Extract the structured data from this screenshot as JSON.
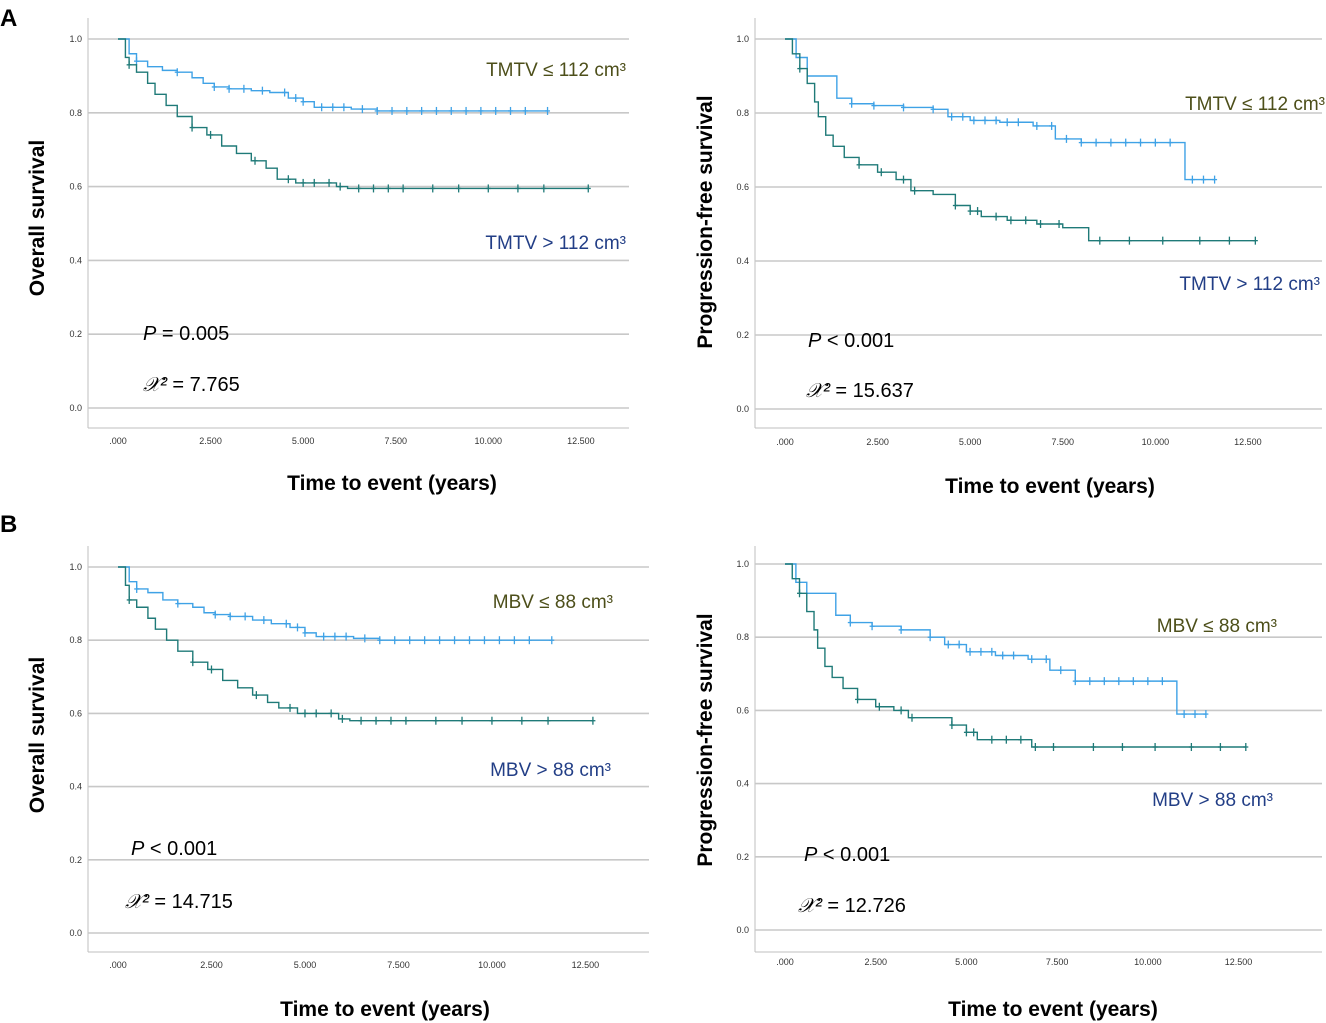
{
  "figure": {
    "panel_labels": [
      "A",
      "B"
    ]
  },
  "colors": {
    "low_group": "#3fa2e6",
    "high_group": "#1f7a78",
    "low_label": "#4d4f1a",
    "high_label": "#223e86",
    "gridline": "#c8c8c8"
  },
  "chart_data": [
    {
      "type": "line",
      "panel": "A",
      "title": "",
      "xlabel": "Time to event (years)",
      "ylabel": "Overall survival",
      "xlim": [
        0,
        13.8
      ],
      "ylim": [
        0,
        1.0
      ],
      "x_ticks": [
        ".000",
        "2.500",
        "5.000",
        "7.500",
        "10.000",
        "12.500"
      ],
      "y_ticks": [
        "0.0",
        "0.2",
        "0.4",
        "0.6",
        "0.8",
        "1.0"
      ],
      "stats": {
        "p_label": "P",
        "p_text": "= 0.005",
        "chi_label": "𝒳²",
        "chi_text": "= 7.765"
      },
      "series": [
        {
          "name": "TMTV ≤ 112 cm³",
          "group": "low",
          "x": [
            0,
            0.3,
            0.5,
            0.8,
            1.2,
            1.6,
            2.0,
            2.3,
            2.6,
            3.0,
            3.6,
            4.1,
            4.6,
            5.0,
            5.3,
            5.8,
            6.3,
            7.0,
            8.0,
            9.0,
            10.0,
            11.0,
            11.6
          ],
          "y": [
            1.0,
            0.96,
            0.94,
            0.925,
            0.915,
            0.91,
            0.895,
            0.88,
            0.87,
            0.865,
            0.86,
            0.855,
            0.84,
            0.83,
            0.815,
            0.815,
            0.81,
            0.805,
            0.805,
            0.805,
            0.805,
            0.805,
            0.805
          ],
          "censor_x": [
            0.5,
            1.6,
            2.6,
            3.0,
            3.4,
            3.9,
            4.5,
            4.8,
            5.0,
            5.5,
            5.8,
            6.1,
            6.6,
            7.0,
            7.4,
            7.8,
            8.2,
            8.6,
            9.0,
            9.4,
            9.8,
            10.2,
            10.6,
            11.0,
            11.6
          ]
        },
        {
          "name": "TMTV > 112 cm³",
          "group": "high",
          "x": [
            0,
            0.2,
            0.3,
            0.5,
            0.8,
            1.0,
            1.3,
            1.6,
            2.0,
            2.4,
            2.8,
            3.2,
            3.6,
            4.0,
            4.3,
            4.8,
            5.6,
            5.9,
            6.2,
            7.0,
            8.0,
            9.0,
            10.0,
            11.0,
            12.0,
            12.7
          ],
          "y": [
            1.0,
            0.95,
            0.93,
            0.91,
            0.88,
            0.85,
            0.82,
            0.79,
            0.76,
            0.74,
            0.71,
            0.69,
            0.67,
            0.65,
            0.62,
            0.61,
            0.61,
            0.6,
            0.595,
            0.595,
            0.595,
            0.595,
            0.595,
            0.595,
            0.595,
            0.595
          ],
          "censor_x": [
            0.3,
            2.0,
            2.5,
            3.7,
            4.6,
            5.0,
            5.3,
            5.7,
            6.0,
            6.5,
            6.9,
            7.3,
            7.7,
            8.5,
            9.2,
            10.0,
            10.8,
            11.5,
            12.7
          ]
        }
      ]
    },
    {
      "type": "line",
      "panel": "A",
      "title": "",
      "xlabel": "Time to event (years)",
      "ylabel": "Progression-free survival",
      "xlim": [
        0,
        14.5
      ],
      "ylim": [
        0,
        1.0
      ],
      "x_ticks": [
        ".000",
        "2.500",
        "5.000",
        "7.500",
        "10.000",
        "12.500"
      ],
      "y_ticks": [
        "0.0",
        "0.2",
        "0.4",
        "0.6",
        "0.8",
        "1.0"
      ],
      "stats": {
        "p_label": "P",
        "p_text": "< 0.001",
        "chi_label": "𝒳²",
        "chi_text": "= 15.637"
      },
      "series": [
        {
          "name": "TMTV ≤ 112 cm³",
          "group": "low",
          "x": [
            0,
            0.3,
            0.6,
            0.8,
            1.2,
            1.4,
            1.8,
            2.4,
            3.2,
            4.0,
            4.4,
            5.0,
            5.8,
            6.7,
            7.3,
            8.0,
            9.0,
            10.0,
            10.8,
            11.2,
            11.6
          ],
          "y": [
            1.0,
            0.95,
            0.9,
            0.9,
            0.9,
            0.84,
            0.825,
            0.82,
            0.815,
            0.81,
            0.79,
            0.78,
            0.775,
            0.765,
            0.73,
            0.72,
            0.72,
            0.72,
            0.62,
            0.62,
            0.62
          ],
          "censor_x": [
            1.8,
            2.4,
            3.2,
            4.0,
            4.5,
            4.8,
            5.1,
            5.4,
            5.7,
            6.0,
            6.3,
            6.8,
            7.2,
            7.6,
            8.0,
            8.4,
            8.8,
            9.2,
            9.6,
            10.0,
            10.4,
            11.0,
            11.3,
            11.6
          ]
        },
        {
          "name": "TMTV > 112 cm³",
          "group": "high",
          "x": [
            0,
            0.2,
            0.4,
            0.6,
            0.8,
            0.9,
            1.1,
            1.3,
            1.6,
            2.0,
            2.5,
            3.0,
            3.4,
            4.0,
            4.6,
            5.0,
            5.3,
            6.0,
            6.8,
            7.5,
            7.9,
            8.2,
            9.0,
            10.0,
            11.0,
            12.0,
            12.7
          ],
          "y": [
            1.0,
            0.96,
            0.92,
            0.88,
            0.83,
            0.79,
            0.74,
            0.71,
            0.68,
            0.66,
            0.64,
            0.62,
            0.59,
            0.58,
            0.55,
            0.535,
            0.52,
            0.51,
            0.5,
            0.49,
            0.49,
            0.455,
            0.455,
            0.455,
            0.455,
            0.455,
            0.455
          ],
          "censor_x": [
            0.4,
            2.0,
            2.6,
            3.2,
            3.5,
            4.6,
            5.0,
            5.2,
            5.7,
            6.1,
            6.5,
            6.9,
            7.4,
            8.5,
            9.3,
            10.2,
            11.2,
            12.0,
            12.7
          ]
        }
      ]
    },
    {
      "type": "line",
      "panel": "B",
      "title": "",
      "xlabel": "Time to event (years)",
      "ylabel": "Overall survival",
      "xlim": [
        0,
        14.2
      ],
      "ylim": [
        0,
        1.0
      ],
      "x_ticks": [
        ".000",
        "2.500",
        "5.000",
        "7.500",
        "10.000",
        "12.500"
      ],
      "y_ticks": [
        "0.0",
        "0.2",
        "0.4",
        "0.6",
        "0.8",
        "1.0"
      ],
      "stats": {
        "p_label": "P",
        "p_text": "< 0.001",
        "chi_label": "𝒳²",
        "chi_text": "= 14.715"
      },
      "series": [
        {
          "name": "MBV ≤ 88 cm³",
          "group": "low",
          "x": [
            0,
            0.3,
            0.5,
            0.8,
            1.2,
            1.6,
            2.0,
            2.3,
            2.6,
            3.0,
            3.6,
            4.1,
            4.6,
            5.0,
            5.3,
            5.8,
            6.3,
            7.0,
            8.0,
            9.0,
            10.0,
            11.0,
            11.6
          ],
          "y": [
            1.0,
            0.96,
            0.94,
            0.93,
            0.91,
            0.9,
            0.89,
            0.875,
            0.87,
            0.865,
            0.855,
            0.845,
            0.835,
            0.82,
            0.81,
            0.81,
            0.805,
            0.8,
            0.8,
            0.8,
            0.8,
            0.8,
            0.8
          ],
          "censor_x": [
            0.5,
            1.6,
            2.6,
            3.0,
            3.4,
            3.9,
            4.5,
            4.8,
            5.0,
            5.5,
            5.8,
            6.1,
            6.6,
            7.0,
            7.4,
            7.8,
            8.2,
            8.6,
            9.0,
            9.4,
            9.8,
            10.2,
            10.6,
            11.0,
            11.6
          ]
        },
        {
          "name": "MBV > 88 cm³",
          "group": "high",
          "x": [
            0,
            0.2,
            0.3,
            0.5,
            0.8,
            1.0,
            1.3,
            1.6,
            2.0,
            2.4,
            2.8,
            3.2,
            3.6,
            4.0,
            4.3,
            4.8,
            5.6,
            5.9,
            6.2,
            7.0,
            8.0,
            9.0,
            10.0,
            11.0,
            12.0,
            12.7
          ],
          "y": [
            1.0,
            0.95,
            0.91,
            0.89,
            0.86,
            0.83,
            0.8,
            0.77,
            0.74,
            0.72,
            0.69,
            0.67,
            0.65,
            0.63,
            0.615,
            0.6,
            0.6,
            0.585,
            0.58,
            0.58,
            0.58,
            0.58,
            0.58,
            0.58,
            0.58,
            0.58
          ],
          "censor_x": [
            0.3,
            2.0,
            2.5,
            3.7,
            4.6,
            5.0,
            5.3,
            5.7,
            6.0,
            6.5,
            6.9,
            7.3,
            7.7,
            8.5,
            9.2,
            10.0,
            10.8,
            11.5,
            12.7
          ]
        }
      ]
    },
    {
      "type": "line",
      "panel": "B",
      "title": "",
      "xlabel": "Time to event (years)",
      "ylabel": "Progression-free survival",
      "xlim": [
        0,
        14.8
      ],
      "ylim": [
        0,
        1.0
      ],
      "x_ticks": [
        ".000",
        "2.500",
        "5.000",
        "7.500",
        "10.000",
        "12.500"
      ],
      "y_ticks": [
        "0.0",
        "0.2",
        "0.4",
        "0.6",
        "0.8",
        "1.0"
      ],
      "stats": {
        "p_label": "P",
        "p_text": "< 0.001",
        "chi_label": "𝒳²",
        "chi_text": "= 12.726"
      },
      "series": [
        {
          "name": "MBV ≤ 88 cm³",
          "group": "low",
          "x": [
            0,
            0.3,
            0.6,
            0.8,
            1.2,
            1.4,
            1.8,
            2.4,
            3.2,
            4.0,
            4.4,
            5.0,
            5.8,
            6.7,
            7.3,
            8.0,
            9.0,
            10.0,
            10.8,
            11.2,
            11.6
          ],
          "y": [
            1.0,
            0.95,
            0.92,
            0.92,
            0.92,
            0.86,
            0.84,
            0.83,
            0.82,
            0.8,
            0.78,
            0.76,
            0.75,
            0.74,
            0.71,
            0.68,
            0.68,
            0.68,
            0.59,
            0.59,
            0.59
          ],
          "censor_x": [
            1.8,
            2.4,
            3.2,
            4.0,
            4.5,
            4.8,
            5.1,
            5.4,
            5.7,
            6.0,
            6.3,
            6.8,
            7.2,
            7.6,
            8.0,
            8.4,
            8.8,
            9.2,
            9.6,
            10.0,
            10.4,
            11.0,
            11.3,
            11.6
          ]
        },
        {
          "name": "MBV > 88 cm³",
          "group": "high",
          "x": [
            0,
            0.2,
            0.4,
            0.6,
            0.8,
            0.9,
            1.1,
            1.3,
            1.6,
            2.0,
            2.5,
            3.0,
            3.4,
            4.0,
            4.6,
            5.0,
            5.3,
            6.0,
            6.8,
            7.5,
            8.0,
            9.0,
            10.0,
            11.0,
            12.0,
            12.7
          ],
          "y": [
            1.0,
            0.96,
            0.92,
            0.87,
            0.82,
            0.77,
            0.72,
            0.69,
            0.66,
            0.63,
            0.61,
            0.6,
            0.58,
            0.58,
            0.56,
            0.54,
            0.52,
            0.52,
            0.5,
            0.5,
            0.5,
            0.5,
            0.5,
            0.5,
            0.5,
            0.5
          ],
          "censor_x": [
            0.4,
            2.0,
            2.6,
            3.2,
            3.5,
            4.6,
            5.0,
            5.2,
            5.7,
            6.1,
            6.5,
            6.9,
            7.4,
            8.5,
            9.3,
            10.2,
            11.2,
            12.0,
            12.7
          ]
        }
      ]
    }
  ]
}
